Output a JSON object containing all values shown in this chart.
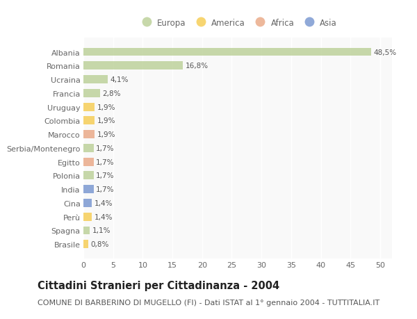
{
  "title": "Cittadini Stranieri per Cittadinanza - 2004",
  "subtitle": "COMUNE DI BARBERINO DI MUGELLO (FI) - Dati ISTAT al 1° gennaio 2004 - TUTTITALIA.IT",
  "categories": [
    "Albania",
    "Romania",
    "Ucraina",
    "Francia",
    "Uruguay",
    "Colombia",
    "Marocco",
    "Serbia/Montenegro",
    "Egitto",
    "Polonia",
    "India",
    "Cina",
    "Perù",
    "Spagna",
    "Brasile"
  ],
  "values": [
    48.5,
    16.8,
    4.1,
    2.8,
    1.9,
    1.9,
    1.9,
    1.7,
    1.7,
    1.7,
    1.7,
    1.4,
    1.4,
    1.1,
    0.8
  ],
  "labels": [
    "48,5%",
    "16,8%",
    "4,1%",
    "2,8%",
    "1,9%",
    "1,9%",
    "1,9%",
    "1,7%",
    "1,7%",
    "1,7%",
    "1,7%",
    "1,4%",
    "1,4%",
    "1,1%",
    "0,8%"
  ],
  "colors": [
    "#b5cc8e",
    "#b5cc8e",
    "#b5cc8e",
    "#b5cc8e",
    "#f5c842",
    "#f5c842",
    "#e8a07a",
    "#b5cc8e",
    "#e8a07a",
    "#b5cc8e",
    "#6b8ccc",
    "#6b8ccc",
    "#f5c842",
    "#b5cc8e",
    "#f5c842"
  ],
  "legend": [
    {
      "label": "Europa",
      "color": "#b5cc8e"
    },
    {
      "label": "America",
      "color": "#f5c842"
    },
    {
      "label": "Africa",
      "color": "#e8a07a"
    },
    {
      "label": "Asia",
      "color": "#6b8ccc"
    }
  ],
  "xlim": [
    0,
    52
  ],
  "xticks": [
    0,
    5,
    10,
    15,
    20,
    25,
    30,
    35,
    40,
    45,
    50
  ],
  "background_color": "#ffffff",
  "plot_bg_color": "#f9f9f9",
  "grid_color": "#ffffff",
  "title_fontsize": 10.5,
  "subtitle_fontsize": 8,
  "label_fontsize": 7.5,
  "tick_fontsize": 8,
  "ytick_fontsize": 8,
  "bar_alpha": 0.75,
  "bar_height": 0.6
}
